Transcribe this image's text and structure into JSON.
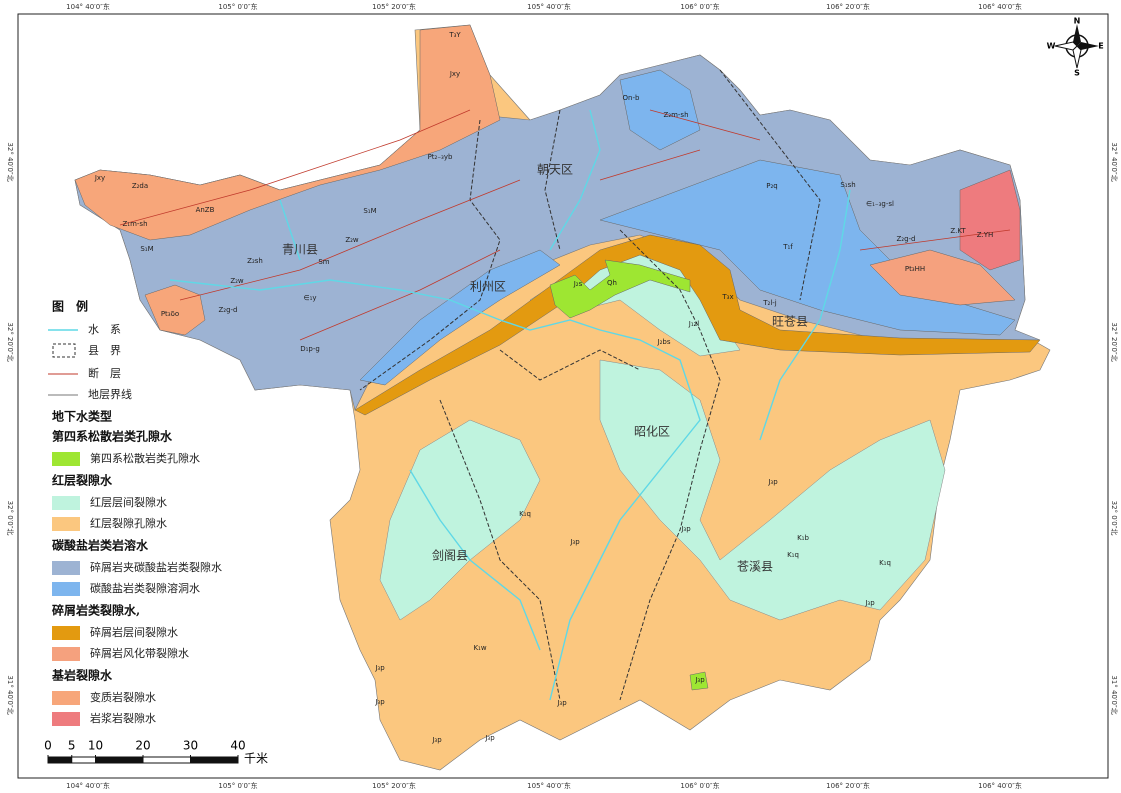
{
  "map": {
    "coordinates": {
      "top": [
        "104° 40′0″东",
        "105° 0′0″东",
        "105° 20′0″东",
        "105° 40′0″东",
        "106° 0′0″东",
        "106° 20′0″东",
        "106° 40′0″东"
      ],
      "bottom": [
        "104° 40′0″东",
        "105° 0′0″东",
        "105° 20′0″东",
        "105° 40′0″东",
        "106° 0′0″东",
        "106° 20′0″东",
        "106° 40′0″东"
      ],
      "left": [
        "32° 40′0″北",
        "32° 20′0″北",
        "32° 0′0″北",
        "31° 40′0″北"
      ],
      "right": [
        "32° 40′0″北",
        "32° 20′0″北",
        "32° 0′0″北",
        "31° 40′0″北"
      ]
    },
    "compass": {
      "N": "N",
      "S": "S",
      "E": "E",
      "W": "W"
    },
    "places": [
      "青川县",
      "朝天区",
      "利州区",
      "旺苍县",
      "昭化区",
      "剑阁县",
      "苍溪县"
    ],
    "unit_labels": [
      "T₃Y",
      "Jxy",
      "Pt₂₋₃yb",
      "Jxy",
      "Z₂da",
      "AnZB",
      "Z₁m-sh",
      "S₁M",
      "Z₂sh",
      "Sm",
      "Z₂w",
      "Z₂g-d",
      "Pt₃δo",
      "∈₁y",
      "D₁p-g",
      "S₁M",
      "Z₂w",
      "On-b",
      "Z₂m-sh",
      "P₂q",
      "S₁sh",
      "∈₁₋₃g-sl",
      "Z₂g-d",
      "Z.KT",
      "Z.YH",
      "Pt₃HH",
      "T₁f",
      "T₂l-j",
      "T₃x",
      "J₁zl",
      "J₂s",
      "Qh",
      "J₂bs",
      "J₃p",
      "J₃p",
      "K₁b",
      "K₁q",
      "K₁q",
      "K₁w",
      "J₃p",
      "J₃p",
      "J₃p",
      "J₃p",
      "J₃p",
      "J₃p",
      "J₃p",
      "J₃p",
      "K₁q"
    ]
  },
  "legend": {
    "title": "图　例",
    "basic": [
      {
        "label": "水　系",
        "kind": "line",
        "color": "#5fd8e6"
      },
      {
        "label": "县　界",
        "kind": "box",
        "color": "#333333"
      },
      {
        "label": "断　层",
        "kind": "line",
        "color": "#c0392b"
      },
      {
        "label": "地层界线",
        "kind": "line",
        "color": "#777777"
      }
    ],
    "groundwater_title": "地下水类型",
    "groups": [
      {
        "title": "第四系松散岩类孔隙水",
        "items": [
          {
            "label": "第四系松散岩类孔隙水",
            "color": "#9ee632"
          }
        ]
      },
      {
        "title": "红层裂隙水",
        "items": [
          {
            "label": "红层层间裂隙水",
            "color": "#bff3de"
          },
          {
            "label": "红层裂隙孔隙水",
            "color": "#fbc77f"
          }
        ]
      },
      {
        "title": "碳酸盐岩类岩溶水",
        "items": [
          {
            "label": "碎屑岩夹碳酸盐岩类裂隙水",
            "color": "#9db3d3"
          },
          {
            "label": "碳酸盐岩类裂隙溶洞水",
            "color": "#7db5ee"
          }
        ]
      },
      {
        "title": "碎屑岩类裂隙水,",
        "items": [
          {
            "label": "碎屑岩层间裂隙水",
            "color": "#e39a10"
          },
          {
            "label": "碎屑岩风化带裂隙水",
            "color": "#f5a17e"
          }
        ]
      },
      {
        "title": "基岩裂隙水",
        "items": [
          {
            "label": "变质岩裂隙水",
            "color": "#f7a67a"
          },
          {
            "label": "岩浆岩裂隙水",
            "color": "#ee7b7e"
          }
        ]
      }
    ]
  },
  "scale_bar": {
    "ticks": [
      0,
      5,
      10,
      20,
      30,
      40
    ],
    "unit": "千米"
  }
}
